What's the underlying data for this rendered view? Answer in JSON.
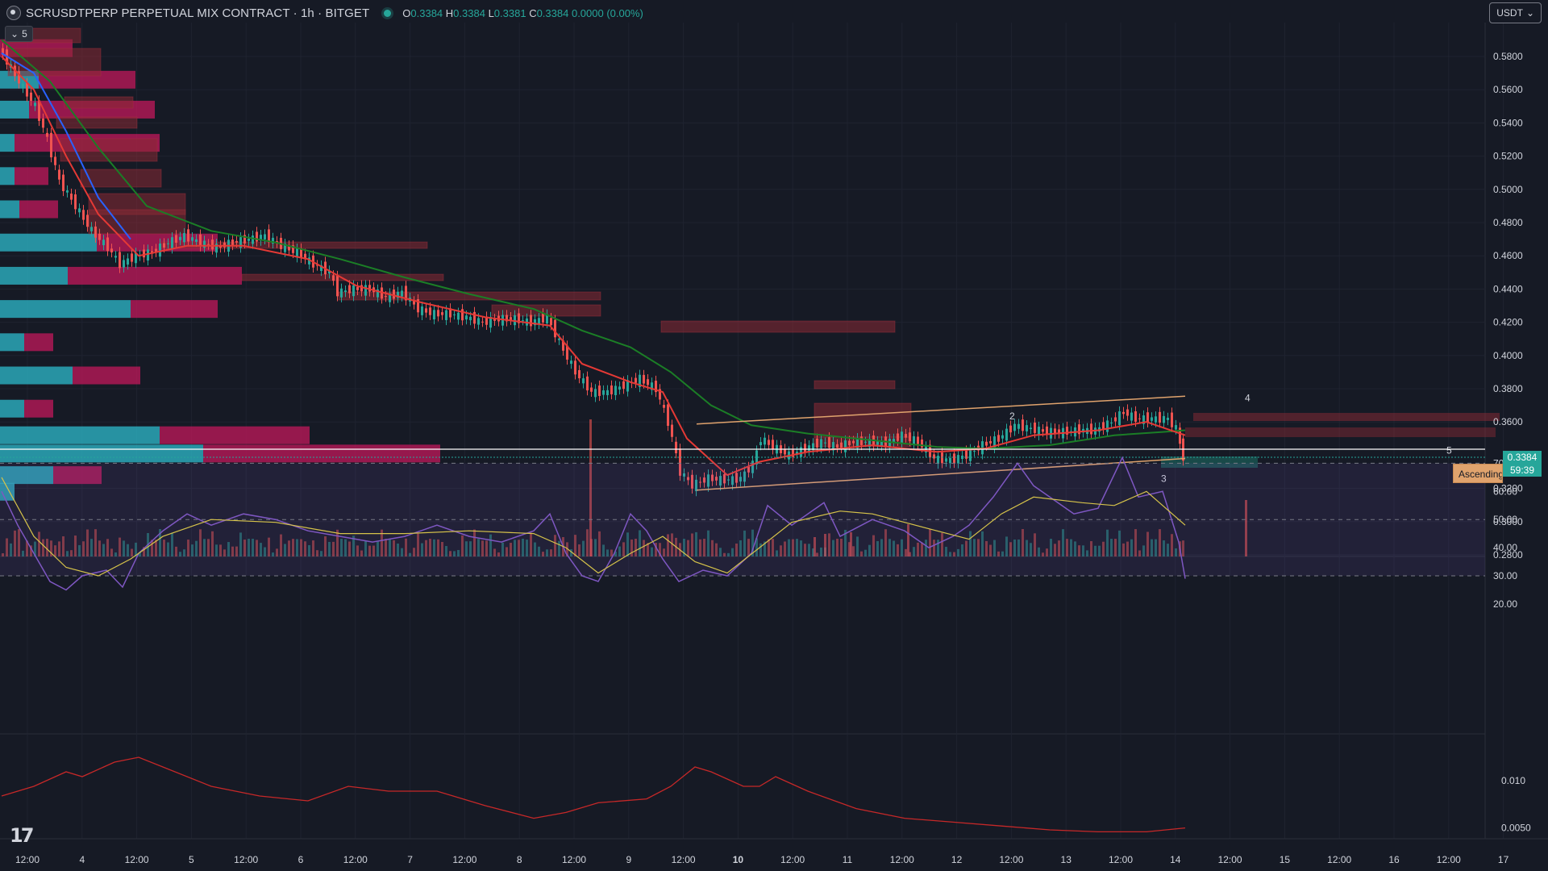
{
  "header": {
    "symbol": "SCRUSDTPERP PERPETUAL MIX CONTRACT · 1h · BITGET",
    "open_key": "O",
    "open": "0.3384",
    "high_key": "H",
    "high": "0.3384",
    "low_key": "L",
    "low": "0.3381",
    "close_key": "C",
    "close": "0.3384",
    "change": "0.0000 (0.00%)",
    "collapse_count": "5",
    "unit": "USDT"
  },
  "price_axis": {
    "labels": [
      "0.5800",
      "0.5600",
      "0.5400",
      "0.5200",
      "0.5000",
      "0.4800",
      "0.4600",
      "0.4400",
      "0.4200",
      "0.4000",
      "0.3800",
      "0.3600",
      "0.3200",
      "0.3000",
      "0.2800"
    ],
    "current_price": "0.3384",
    "countdown": "59:39",
    "pattern_label": "Ascending"
  },
  "rsi_axis": {
    "labels": [
      "70.00",
      "60.00",
      "50.00",
      "40.00",
      "30.00",
      "20.00"
    ]
  },
  "lower_axis": {
    "labels": [
      "0.010",
      "0.0050"
    ]
  },
  "time_axis": {
    "labels": [
      "12:00",
      "4",
      "12:00",
      "5",
      "12:00",
      "6",
      "12:00",
      "7",
      "12:00",
      "8",
      "12:00",
      "9",
      "12:00",
      "10",
      "12:00",
      "11",
      "12:00",
      "12",
      "12:00",
      "13",
      "12:00",
      "14",
      "12:00",
      "15",
      "12:00",
      "16",
      "12:00",
      "17"
    ]
  },
  "wave_labels": [
    "2",
    "3",
    "4",
    "5"
  ],
  "colors": {
    "bg": "#161a25",
    "up": "#26a69a",
    "down": "#ef5350",
    "ema_fast": "#e53935",
    "ema_mid": "#2962ff",
    "ema_slow": "#1b7e26",
    "rsi": "#7e57c2",
    "rsi_ma": "#d6c34a",
    "channel": "#e0a36d"
  },
  "chart_data": {
    "type": "candlestick",
    "timeframe": "1h",
    "y_range": [
      0.28,
      0.59
    ],
    "price_path": [
      [
        0,
        0.585
      ],
      [
        25,
        0.565
      ],
      [
        45,
        0.55
      ],
      [
        60,
        0.53
      ],
      [
        75,
        0.505
      ],
      [
        95,
        0.49
      ],
      [
        115,
        0.475
      ],
      [
        135,
        0.465
      ],
      [
        150,
        0.455
      ],
      [
        170,
        0.46
      ],
      [
        190,
        0.462
      ],
      [
        210,
        0.468
      ],
      [
        230,
        0.472
      ],
      [
        250,
        0.468
      ],
      [
        270,
        0.465
      ],
      [
        290,
        0.468
      ],
      [
        310,
        0.47
      ],
      [
        330,
        0.472
      ],
      [
        350,
        0.466
      ],
      [
        370,
        0.462
      ],
      [
        390,
        0.455
      ],
      [
        410,
        0.45
      ],
      [
        420,
        0.438
      ],
      [
        440,
        0.44
      ],
      [
        460,
        0.44
      ],
      [
        480,
        0.435
      ],
      [
        500,
        0.438
      ],
      [
        520,
        0.428
      ],
      [
        540,
        0.425
      ],
      [
        560,
        0.425
      ],
      [
        580,
        0.423
      ],
      [
        600,
        0.42
      ],
      [
        620,
        0.422
      ],
      [
        640,
        0.422
      ],
      [
        660,
        0.42
      ],
      [
        680,
        0.423
      ],
      [
        695,
        0.408
      ],
      [
        715,
        0.39
      ],
      [
        735,
        0.378
      ],
      [
        755,
        0.378
      ],
      [
        775,
        0.382
      ],
      [
        795,
        0.386
      ],
      [
        815,
        0.38
      ],
      [
        830,
        0.36
      ],
      [
        845,
        0.33
      ],
      [
        860,
        0.322
      ],
      [
        880,
        0.326
      ],
      [
        900,
        0.325
      ],
      [
        920,
        0.326
      ],
      [
        935,
        0.335
      ],
      [
        945,
        0.35
      ],
      [
        960,
        0.345
      ],
      [
        980,
        0.34
      ],
      [
        1000,
        0.344
      ],
      [
        1020,
        0.348
      ],
      [
        1040,
        0.345
      ],
      [
        1060,
        0.348
      ],
      [
        1080,
        0.348
      ],
      [
        1100,
        0.347
      ],
      [
        1120,
        0.352
      ],
      [
        1140,
        0.348
      ],
      [
        1160,
        0.338
      ],
      [
        1180,
        0.337
      ],
      [
        1200,
        0.34
      ],
      [
        1220,
        0.346
      ],
      [
        1240,
        0.35
      ],
      [
        1260,
        0.358
      ],
      [
        1280,
        0.356
      ],
      [
        1300,
        0.354
      ],
      [
        1320,
        0.354
      ],
      [
        1340,
        0.355
      ],
      [
        1360,
        0.355
      ],
      [
        1380,
        0.36
      ],
      [
        1395,
        0.366
      ],
      [
        1410,
        0.362
      ],
      [
        1430,
        0.362
      ],
      [
        1450,
        0.362
      ],
      [
        1460,
        0.356
      ],
      [
        1468,
        0.3384
      ]
    ],
    "ema_fast_path": [
      [
        0,
        0.58
      ],
      [
        40,
        0.56
      ],
      [
        80,
        0.52
      ],
      [
        120,
        0.485
      ],
      [
        170,
        0.46
      ],
      [
        230,
        0.466
      ],
      [
        300,
        0.466
      ],
      [
        380,
        0.458
      ],
      [
        440,
        0.442
      ],
      [
        520,
        0.432
      ],
      [
        600,
        0.423
      ],
      [
        680,
        0.418
      ],
      [
        720,
        0.395
      ],
      [
        780,
        0.384
      ],
      [
        820,
        0.378
      ],
      [
        850,
        0.35
      ],
      [
        900,
        0.328
      ],
      [
        940,
        0.336
      ],
      [
        1000,
        0.342
      ],
      [
        1080,
        0.346
      ],
      [
        1160,
        0.342
      ],
      [
        1220,
        0.344
      ],
      [
        1280,
        0.352
      ],
      [
        1360,
        0.355
      ],
      [
        1420,
        0.36
      ],
      [
        1468,
        0.352
      ]
    ],
    "ema_mid_path": [
      [
        0,
        0.582
      ],
      [
        40,
        0.57
      ],
      [
        80,
        0.535
      ],
      [
        120,
        0.495
      ],
      [
        160,
        0.47
      ]
    ],
    "ema_slow_path": [
      [
        0,
        0.59
      ],
      [
        60,
        0.565
      ],
      [
        120,
        0.525
      ],
      [
        180,
        0.49
      ],
      [
        260,
        0.475
      ],
      [
        340,
        0.468
      ],
      [
        420,
        0.458
      ],
      [
        500,
        0.447
      ],
      [
        580,
        0.437
      ],
      [
        660,
        0.428
      ],
      [
        720,
        0.415
      ],
      [
        780,
        0.405
      ],
      [
        830,
        0.39
      ],
      [
        880,
        0.37
      ],
      [
        930,
        0.358
      ],
      [
        1000,
        0.353
      ],
      [
        1080,
        0.349
      ],
      [
        1160,
        0.345
      ],
      [
        1220,
        0.344
      ],
      [
        1300,
        0.346
      ],
      [
        1380,
        0.352
      ],
      [
        1440,
        0.354
      ],
      [
        1468,
        0.355
      ]
    ],
    "channel_upper": [
      [
        862,
        0.3588
      ],
      [
        1468,
        0.3755
      ]
    ],
    "channel_lower": [
      [
        862,
        0.319
      ],
      [
        1468,
        0.338
      ]
    ],
    "rsi_path": [
      [
        0,
        60
      ],
      [
        20,
        48
      ],
      [
        40,
        38
      ],
      [
        60,
        28
      ],
      [
        80,
        25
      ],
      [
        100,
        30
      ],
      [
        130,
        32
      ],
      [
        150,
        26
      ],
      [
        170,
        38
      ],
      [
        200,
        46
      ],
      [
        230,
        52
      ],
      [
        260,
        48
      ],
      [
        300,
        52
      ],
      [
        340,
        50
      ],
      [
        380,
        46
      ],
      [
        420,
        44
      ],
      [
        460,
        42
      ],
      [
        500,
        44
      ],
      [
        540,
        48
      ],
      [
        580,
        44
      ],
      [
        620,
        42
      ],
      [
        660,
        46
      ],
      [
        680,
        52
      ],
      [
        700,
        38
      ],
      [
        720,
        30
      ],
      [
        740,
        28
      ],
      [
        760,
        38
      ],
      [
        780,
        52
      ],
      [
        800,
        46
      ],
      [
        820,
        36
      ],
      [
        840,
        28
      ],
      [
        870,
        32
      ],
      [
        900,
        30
      ],
      [
        930,
        38
      ],
      [
        950,
        55
      ],
      [
        980,
        48
      ],
      [
        1000,
        52
      ],
      [
        1020,
        56
      ],
      [
        1040,
        44
      ],
      [
        1080,
        50
      ],
      [
        1120,
        46
      ],
      [
        1150,
        40
      ],
      [
        1180,
        44
      ],
      [
        1200,
        48
      ],
      [
        1230,
        58
      ],
      [
        1260,
        70
      ],
      [
        1280,
        62
      ],
      [
        1300,
        58
      ],
      [
        1330,
        52
      ],
      [
        1360,
        54
      ],
      [
        1390,
        72
      ],
      [
        1410,
        58
      ],
      [
        1440,
        60
      ],
      [
        1460,
        42
      ],
      [
        1468,
        29
      ]
    ],
    "rsi_ma_path": [
      [
        0,
        65
      ],
      [
        40,
        44
      ],
      [
        80,
        33
      ],
      [
        120,
        30
      ],
      [
        160,
        36
      ],
      [
        200,
        44
      ],
      [
        260,
        50
      ],
      [
        340,
        49
      ],
      [
        420,
        45
      ],
      [
        500,
        45
      ],
      [
        580,
        46
      ],
      [
        660,
        45
      ],
      [
        700,
        40
      ],
      [
        740,
        31
      ],
      [
        780,
        38
      ],
      [
        820,
        44
      ],
      [
        860,
        35
      ],
      [
        900,
        31
      ],
      [
        940,
        40
      ],
      [
        980,
        49
      ],
      [
        1040,
        53
      ],
      [
        1080,
        52
      ],
      [
        1120,
        49
      ],
      [
        1160,
        46
      ],
      [
        1200,
        43
      ],
      [
        1240,
        52
      ],
      [
        1280,
        58
      ],
      [
        1340,
        56
      ],
      [
        1380,
        55
      ],
      [
        1420,
        60
      ],
      [
        1468,
        48
      ]
    ],
    "lower_path": [
      [
        0,
        0.0085
      ],
      [
        40,
        0.0095
      ],
      [
        80,
        0.011
      ],
      [
        100,
        0.0105
      ],
      [
        140,
        0.012
      ],
      [
        170,
        0.0125
      ],
      [
        200,
        0.0115
      ],
      [
        260,
        0.0095
      ],
      [
        320,
        0.0085
      ],
      [
        380,
        0.008
      ],
      [
        430,
        0.0095
      ],
      [
        480,
        0.009
      ],
      [
        540,
        0.009
      ],
      [
        600,
        0.0075
      ],
      [
        660,
        0.0062
      ],
      [
        700,
        0.0068
      ],
      [
        740,
        0.0078
      ],
      [
        800,
        0.0082
      ],
      [
        830,
        0.0095
      ],
      [
        860,
        0.0115
      ],
      [
        880,
        0.011
      ],
      [
        920,
        0.0095
      ],
      [
        940,
        0.0095
      ],
      [
        960,
        0.0105
      ],
      [
        1000,
        0.009
      ],
      [
        1060,
        0.0072
      ],
      [
        1120,
        0.0062
      ],
      [
        1180,
        0.0058
      ],
      [
        1240,
        0.0054
      ],
      [
        1300,
        0.005
      ],
      [
        1360,
        0.0048
      ],
      [
        1420,
        0.0048
      ],
      [
        1468,
        0.0052
      ]
    ],
    "volume_profile": [
      {
        "price": 0.585,
        "up": 0,
        "down": 0.15
      },
      {
        "price": 0.566,
        "up": 0.08,
        "down": 0.2
      },
      {
        "price": 0.548,
        "up": 0.06,
        "down": 0.26
      },
      {
        "price": 0.528,
        "up": 0.03,
        "down": 0.3
      },
      {
        "price": 0.508,
        "up": 0.03,
        "down": 0.07
      },
      {
        "price": 0.488,
        "up": 0.04,
        "down": 0.08
      },
      {
        "price": 0.468,
        "up": 0.2,
        "down": 0.25
      },
      {
        "price": 0.448,
        "up": 0.14,
        "down": 0.36
      },
      {
        "price": 0.428,
        "up": 0.27,
        "down": 0.18
      },
      {
        "price": 0.408,
        "up": 0.05,
        "down": 0.06
      },
      {
        "price": 0.388,
        "up": 0.15,
        "down": 0.14
      },
      {
        "price": 0.368,
        "up": 0.05,
        "down": 0.06
      },
      {
        "price": 0.352,
        "up": 0.33,
        "down": 0.31
      },
      {
        "price": 0.341,
        "up": 0.42,
        "down": 0.49
      },
      {
        "price": 0.328,
        "up": 0.11,
        "down": 0.1
      },
      {
        "price": 0.318,
        "up": 0.03,
        "down": 0
      }
    ]
  }
}
